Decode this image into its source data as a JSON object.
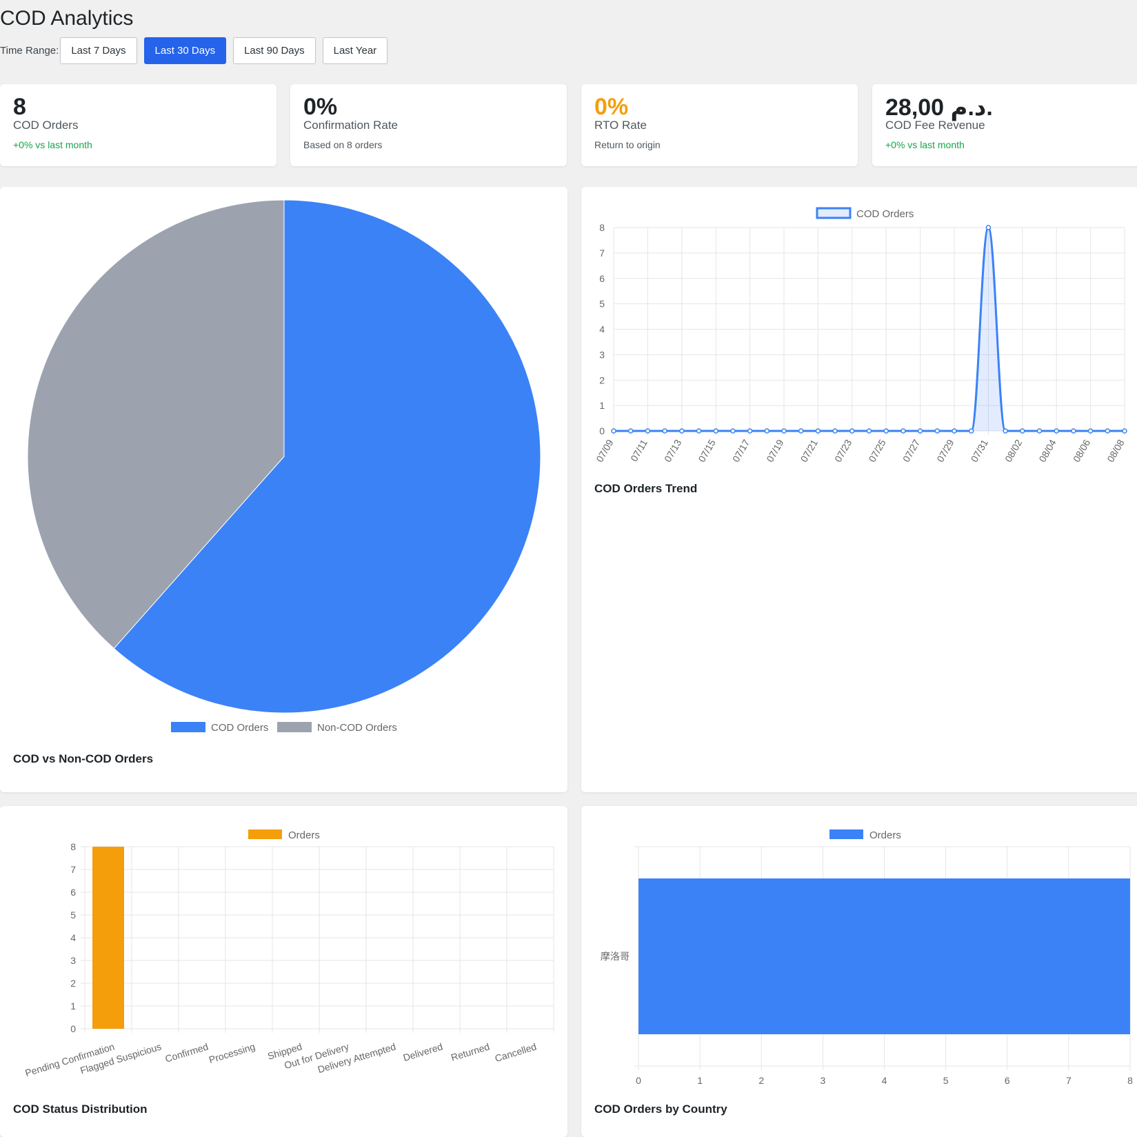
{
  "page": {
    "title": "COD Analytics"
  },
  "time_range": {
    "label": "Time Range:",
    "options": [
      "Last 7 Days",
      "Last 30 Days",
      "Last 90 Days",
      "Last Year"
    ],
    "selected": "Last 30 Days"
  },
  "stats": [
    {
      "value": "8",
      "label": "COD Orders",
      "sub": "+0% vs last month"
    },
    {
      "value": "0%",
      "label": "Confirmation Rate",
      "sub": "Based on 8 orders"
    },
    {
      "value": "0%",
      "label": "RTO Rate",
      "sub": "Return to origin"
    },
    {
      "value": "28,00 د.م.",
      "label": "COD Fee Revenue",
      "sub": "+0% vs last month"
    }
  ],
  "colors": {
    "blue": "#3b82f6",
    "gray": "#9ca3af",
    "orange": "#f59e0b",
    "green": "#16a34a",
    "accent": "#2563eb"
  },
  "chart_data": [
    {
      "id": "cod-vs-noncod",
      "type": "pie",
      "title": "COD vs Non-COD Orders",
      "series": [
        {
          "name": "COD Orders",
          "value": 8
        },
        {
          "name": "Non-COD Orders",
          "value": 5
        }
      ],
      "legend": "bottom"
    },
    {
      "id": "cod-trend",
      "type": "line",
      "title": "COD Orders Trend",
      "x": [
        "07/09",
        "07/10",
        "07/11",
        "07/12",
        "07/13",
        "07/14",
        "07/15",
        "07/16",
        "07/17",
        "07/18",
        "07/19",
        "07/20",
        "07/21",
        "07/22",
        "07/23",
        "07/24",
        "07/25",
        "07/26",
        "07/27",
        "07/28",
        "07/29",
        "07/30",
        "07/31",
        "08/01",
        "08/02",
        "08/03",
        "08/04",
        "08/05",
        "08/06",
        "08/07",
        "08/08"
      ],
      "x_tick_labels": [
        "07/09",
        "07/11",
        "07/13",
        "07/15",
        "07/17",
        "07/19",
        "07/21",
        "07/23",
        "07/25",
        "07/27",
        "07/29",
        "07/31",
        "08/02",
        "08/04",
        "08/06",
        "08/08"
      ],
      "series": [
        {
          "name": "COD Orders",
          "values": [
            0,
            0,
            0,
            0,
            0,
            0,
            0,
            0,
            0,
            0,
            0,
            0,
            0,
            0,
            0,
            0,
            0,
            0,
            0,
            0,
            0,
            0,
            8,
            0,
            0,
            0,
            0,
            0,
            0,
            0,
            0
          ]
        }
      ],
      "ylim": [
        0,
        8
      ],
      "y_ticks": [
        "0",
        "1",
        "2",
        "3",
        "4",
        "5",
        "6",
        "7",
        "8"
      ],
      "legend": "top",
      "grid": true
    },
    {
      "id": "cod-status",
      "type": "bar",
      "title": "COD Status Distribution",
      "categories": [
        "Pending Confirmation",
        "Flagged Suspicious",
        "Confirmed",
        "Processing",
        "Shipped",
        "Out for Delivery",
        "Delivery Attempted",
        "Delivered",
        "Returned",
        "Cancelled"
      ],
      "series": [
        {
          "name": "Orders",
          "values": [
            8,
            0,
            0,
            0,
            0,
            0,
            0,
            0,
            0,
            0
          ]
        }
      ],
      "ylim": [
        0,
        8
      ],
      "y_ticks": [
        "0",
        "1",
        "2",
        "3",
        "4",
        "5",
        "6",
        "7",
        "8"
      ],
      "legend": "top",
      "grid": true
    },
    {
      "id": "cod-country",
      "type": "bar",
      "orientation": "horizontal",
      "title": "COD Orders by Country",
      "categories": [
        "摩洛哥"
      ],
      "series": [
        {
          "name": "Orders",
          "values": [
            8
          ]
        }
      ],
      "xlim": [
        0,
        8
      ],
      "x_ticks": [
        "0",
        "1",
        "2",
        "3",
        "4",
        "5",
        "6",
        "7",
        "8"
      ],
      "legend": "top",
      "grid": true
    }
  ]
}
